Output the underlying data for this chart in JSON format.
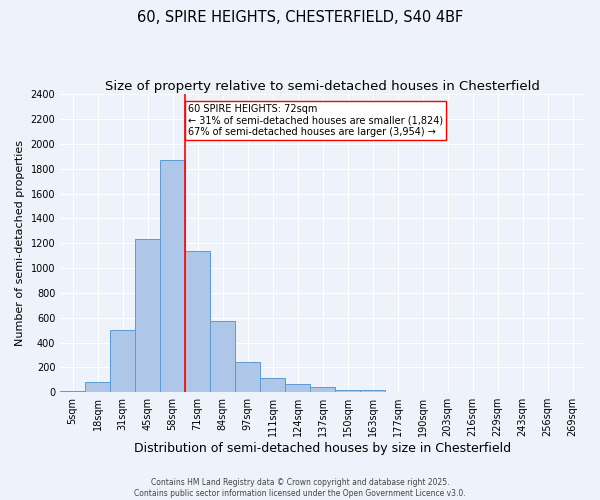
{
  "title": "60, SPIRE HEIGHTS, CHESTERFIELD, S40 4BF",
  "subtitle": "Size of property relative to semi-detached houses in Chesterfield",
  "xlabel": "Distribution of semi-detached houses by size in Chesterfield",
  "ylabel": "Number of semi-detached properties",
  "footer_line1": "Contains HM Land Registry data © Crown copyright and database right 2025.",
  "footer_line2": "Contains public sector information licensed under the Open Government Licence v3.0.",
  "categories": [
    "5sqm",
    "18sqm",
    "31sqm",
    "45sqm",
    "58sqm",
    "71sqm",
    "84sqm",
    "97sqm",
    "111sqm",
    "124sqm",
    "137sqm",
    "150sqm",
    "163sqm",
    "177sqm",
    "190sqm",
    "203sqm",
    "216sqm",
    "229sqm",
    "243sqm",
    "256sqm",
    "269sqm"
  ],
  "values": [
    10,
    80,
    500,
    1230,
    1870,
    1140,
    575,
    245,
    115,
    70,
    45,
    18,
    18,
    0,
    0,
    0,
    0,
    0,
    0,
    0,
    0
  ],
  "bar_color": "#aec6e8",
  "bar_edgecolor": "#5b9bd5",
  "vline_index": 5,
  "vline_color": "red",
  "annotation_text": "60 SPIRE HEIGHTS: 72sqm\n← 31% of semi-detached houses are smaller (1,824)\n67% of semi-detached houses are larger (3,954) →",
  "annotation_box_edgecolor": "red",
  "annotation_box_facecolor": "white",
  "ylim": [
    0,
    2400
  ],
  "yticks": [
    0,
    200,
    400,
    600,
    800,
    1000,
    1200,
    1400,
    1600,
    1800,
    2000,
    2200,
    2400
  ],
  "background_color": "#eef2fa",
  "plot_background": "#eef2fa",
  "grid_color": "white",
  "title_fontsize": 10.5,
  "subtitle_fontsize": 9.5,
  "ylabel_fontsize": 8,
  "xlabel_fontsize": 9,
  "tick_fontsize": 7,
  "footer_fontsize": 5.5,
  "ann_fontsize": 7
}
